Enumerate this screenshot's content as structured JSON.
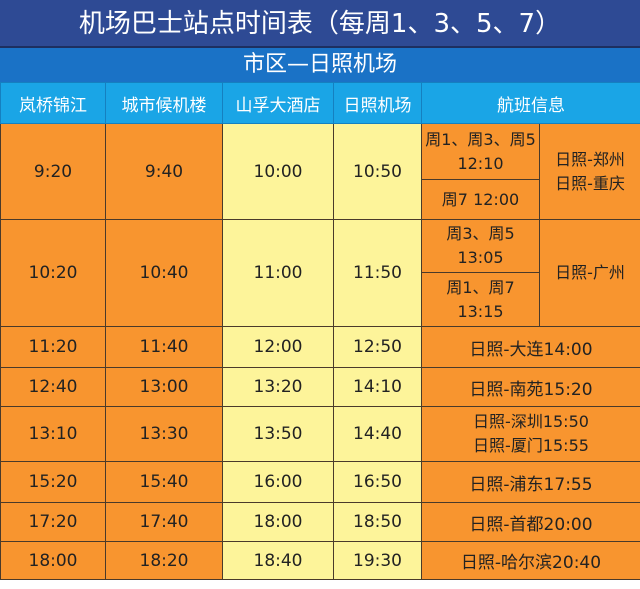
{
  "title": "机场巴士站点时间表（每周1、3、5、7）",
  "subtitle": "市区—日照机场",
  "headers": [
    "岚桥锦江",
    "城市候机楼",
    "山孚大酒店",
    "日照机场",
    "航班信息"
  ],
  "colors": {
    "title_bg": "#2e4a94",
    "subtitle_bg": "#1a72c6",
    "header_bg": "#1aa5e6",
    "orange": "#f8952f",
    "yellow": "#fdf49a"
  },
  "rows": [
    {
      "times": [
        "9:20",
        "9:40",
        "10:00",
        "10:50"
      ],
      "flights_a": "周1、周3、周5 12:10",
      "flights_b": "周7 12:00",
      "routes": [
        "日照-郑州",
        "日照-重庆"
      ]
    },
    {
      "times": [
        "10:20",
        "10:40",
        "11:00",
        "11:50"
      ],
      "flights_a": "周3、周5 13:05",
      "flights_b": "周1、周7 13:15",
      "routes": [
        "日照-广州"
      ]
    },
    {
      "times": [
        "11:20",
        "11:40",
        "12:00",
        "12:50"
      ],
      "flights": [
        "日照-大连14:00"
      ]
    },
    {
      "times": [
        "12:40",
        "13:00",
        "13:20",
        "14:10"
      ],
      "flights": [
        "日照-南苑15:20"
      ]
    },
    {
      "times": [
        "13:10",
        "13:30",
        "13:50",
        "14:40"
      ],
      "flights": [
        "日照-深圳15:50",
        "日照-厦门15:55"
      ]
    },
    {
      "times": [
        "15:20",
        "15:40",
        "16:00",
        "16:50"
      ],
      "flights": [
        "日照-浦东17:55"
      ]
    },
    {
      "times": [
        "17:20",
        "17:40",
        "18:00",
        "18:50"
      ],
      "flights": [
        "日照-首都20:00"
      ]
    },
    {
      "times": [
        "18:00",
        "18:20",
        "18:40",
        "19:30"
      ],
      "flights": [
        "日照-哈尔滨20:40"
      ]
    }
  ]
}
